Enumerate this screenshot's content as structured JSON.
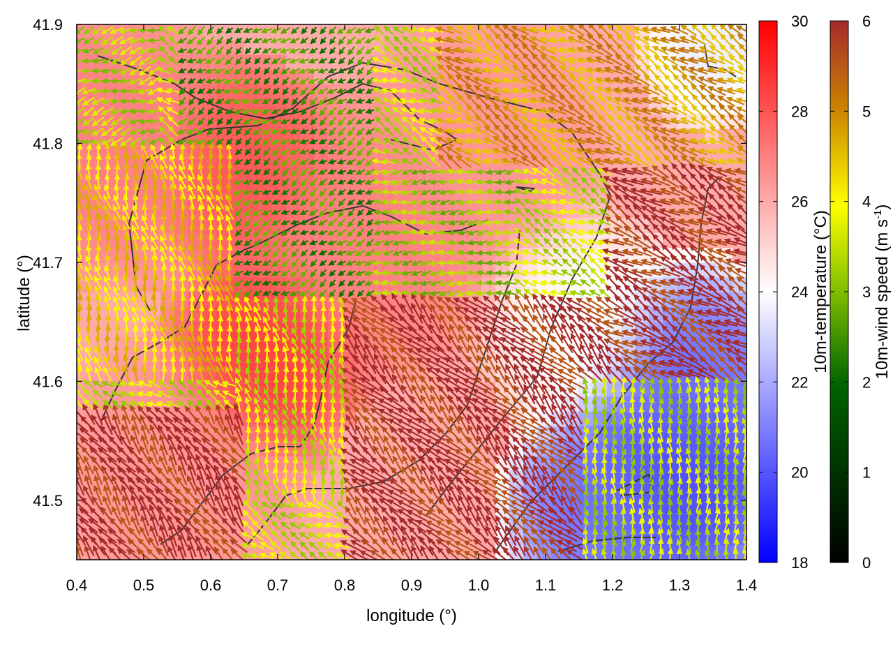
{
  "chart_data": {
    "type": "heatmap",
    "xlabel": "longitude (°)",
    "ylabel": "latitude (°)",
    "xlim": [
      0.4,
      1.4
    ],
    "ylim": [
      41.45,
      41.9
    ],
    "xticks": [
      0.4,
      0.5,
      0.6,
      0.7,
      0.8,
      0.9,
      1.0,
      1.1,
      1.2,
      1.3,
      1.4
    ],
    "xtick_labels": [
      "0.4",
      "0.5",
      "0.6",
      "0.7",
      "0.8",
      "0.9",
      "1.0",
      "1.1",
      "1.2",
      "1.3",
      "1.4"
    ],
    "yticks": [
      41.5,
      41.6,
      41.7,
      41.8,
      41.9
    ],
    "ytick_labels": [
      "41.5",
      "41.6",
      "41.7",
      "41.8",
      "41.9"
    ],
    "temperature": {
      "label": "10m-temperature (°C)",
      "range": [
        18,
        30
      ],
      "ticks": [
        18,
        20,
        22,
        24,
        26,
        28,
        30
      ],
      "tick_labels": [
        "18",
        "20",
        "22",
        "24",
        "26",
        "28",
        "30"
      ],
      "colors": [
        "#0000ff",
        "#ffffff",
        "#ff0000"
      ]
    },
    "wind_speed": {
      "label_main": "10m-wind speed (m s",
      "label_sup": "-1",
      "label_end": ")",
      "range": [
        0,
        6
      ],
      "ticks": [
        0,
        1,
        2,
        3,
        4,
        5,
        6
      ],
      "tick_labels": [
        "0",
        "1",
        "2",
        "3",
        "4",
        "5",
        "6"
      ],
      "colors": [
        "#000000",
        "#006400",
        "#7fbf00",
        "#ffff00",
        "#cc8800",
        "#a52a2a"
      ]
    },
    "temperature_regions": [
      {
        "lon": 0.68,
        "lat": 41.62,
        "t": 28.5,
        "r": 0.08
      },
      {
        "lon": 0.65,
        "lat": 41.78,
        "t": 28.0,
        "r": 0.08
      },
      {
        "lon": 0.45,
        "lat": 41.8,
        "t": 27.0,
        "r": 0.1
      },
      {
        "lon": 0.85,
        "lat": 41.72,
        "t": 27.0,
        "r": 0.1
      },
      {
        "lon": 1.0,
        "lat": 41.8,
        "t": 26.5,
        "r": 0.1
      },
      {
        "lon": 0.55,
        "lat": 41.52,
        "t": 26.5,
        "r": 0.1
      },
      {
        "lon": 1.3,
        "lat": 41.52,
        "t": 19.5,
        "r": 0.1
      },
      {
        "lon": 1.32,
        "lat": 41.6,
        "t": 20.5,
        "r": 0.09
      },
      {
        "lon": 1.18,
        "lat": 41.49,
        "t": 20.5,
        "r": 0.08
      },
      {
        "lon": 1.15,
        "lat": 41.65,
        "t": 24.0,
        "r": 0.08
      },
      {
        "lon": 1.35,
        "lat": 41.88,
        "t": 23.5,
        "r": 0.06
      }
    ],
    "wind_regions": [
      {
        "lon_min": 0.4,
        "lon_max": 0.53,
        "lat_min": 41.8,
        "lat_max": 41.9,
        "speed": 2.8,
        "dir": 200
      },
      {
        "lon_min": 0.55,
        "lon_max": 0.85,
        "lat_min": 41.67,
        "lat_max": 41.9,
        "speed": 1.8,
        "dir": 215
      },
      {
        "lon_min": 0.85,
        "lon_max": 1.05,
        "lat_min": 41.66,
        "lat_max": 41.78,
        "speed": 2.6,
        "dir": 185
      },
      {
        "lon_min": 0.95,
        "lon_max": 1.4,
        "lat_min": 41.78,
        "lat_max": 41.9,
        "speed": 4.6,
        "dir": 150
      },
      {
        "lon_min": 0.4,
        "lon_max": 0.63,
        "lat_min": 41.6,
        "lat_max": 41.8,
        "speed": 4.0,
        "dir": 100
      },
      {
        "lon_min": 0.63,
        "lon_max": 0.8,
        "lat_min": 41.5,
        "lat_max": 41.67,
        "speed": 3.2,
        "dir": 100
      },
      {
        "lon_min": 0.4,
        "lon_max": 0.65,
        "lat_min": 41.45,
        "lat_max": 41.58,
        "speed": 5.9,
        "dir": 125
      },
      {
        "lon_min": 0.8,
        "lon_max": 1.2,
        "lat_min": 41.45,
        "lat_max": 41.67,
        "speed": 5.9,
        "dir": 135
      },
      {
        "lon_min": 1.2,
        "lon_max": 1.4,
        "lat_min": 41.6,
        "lat_max": 41.78,
        "speed": 5.9,
        "dir": 150
      },
      {
        "lon_min": 1.15,
        "lon_max": 1.4,
        "lat_min": 41.45,
        "lat_max": 41.6,
        "speed": 3.0,
        "dir": 90
      }
    ],
    "grid": false,
    "legend": "right"
  }
}
